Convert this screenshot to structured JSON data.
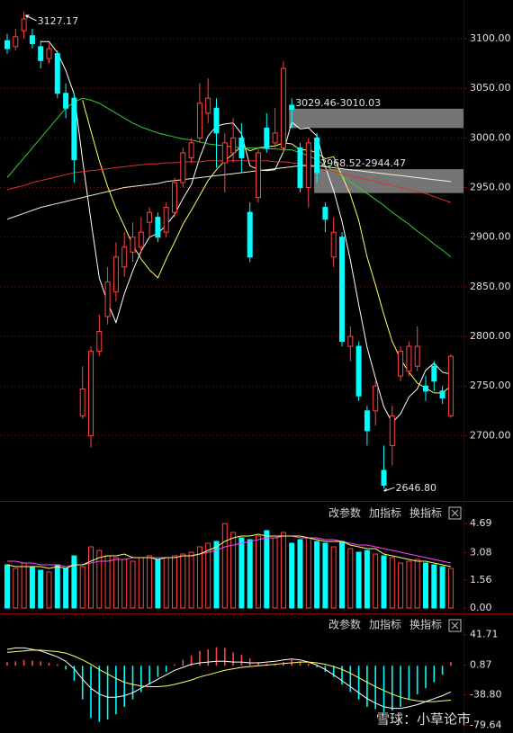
{
  "chart_data": [
    {
      "type": "candlestick",
      "up_color": "#ff4444",
      "down_color": "#00ffff",
      "grid": true,
      "open": [
        3098,
        3092,
        3108,
        3103,
        3092,
        3080,
        3085,
        3045,
        3040,
        2720,
        2700,
        2785,
        2820,
        2845,
        2870,
        2885,
        2890,
        2915,
        2920,
        2905,
        2925,
        2955,
        2980,
        3000,
        3025,
        3030,
        2975,
        2985,
        3000,
        2925,
        2940,
        3010,
        2995,
        2990,
        3033,
        2990,
        2950,
        3000,
        2930,
        2880,
        2900,
        2790,
        2790,
        2725,
        2725,
        2665,
        2690,
        2760,
        2765,
        2770,
        2750,
        2770,
        2745,
        2720
      ],
      "close": [
        3090,
        3102,
        3120,
        3095,
        3078,
        3090,
        3045,
        3030,
        2978,
        2747,
        2785,
        2805,
        2855,
        2880,
        2890,
        2900,
        2905,
        2925,
        2900,
        2930,
        2955,
        2985,
        2995,
        3035,
        3040,
        3005,
        2995,
        3000,
        2980,
        2880,
        2985,
        2990,
        3005,
        3070,
        3029,
        2950,
        2995,
        2965,
        2918,
        2905,
        2795,
        2800,
        2740,
        2705,
        2750,
        2650,
        2720,
        2785,
        2790,
        2790,
        2745,
        2755,
        2738,
        2780
      ],
      "high": [
        3105,
        3110,
        3127.17,
        3110,
        3098,
        3095,
        3088,
        3055,
        3045,
        2770,
        2790,
        2822,
        2870,
        2895,
        2905,
        2915,
        2920,
        2930,
        2925,
        2935,
        2960,
        2990,
        3000,
        3055,
        3060,
        3040,
        3005,
        3020,
        3015,
        2935,
        2990,
        3025,
        3030,
        3077,
        3040,
        2995,
        3000,
        3005,
        2935,
        2920,
        2905,
        2810,
        2795,
        2730,
        2755,
        2690,
        2730,
        2790,
        2795,
        2810,
        2760,
        2775,
        2750,
        2782
      ],
      "low": [
        3085,
        3088,
        3100,
        3090,
        3070,
        3075,
        3040,
        3020,
        2955,
        2717,
        2688,
        2780,
        2812,
        2835,
        2860,
        2875,
        2885,
        2900,
        2895,
        2900,
        2920,
        2950,
        2975,
        2995,
        3015,
        2970,
        2945,
        2975,
        2965,
        2875,
        2935,
        2985,
        2990,
        2985,
        3010,
        2945,
        2930,
        2955,
        2905,
        2870,
        2790,
        2775,
        2735,
        2690,
        2710,
        2646.8,
        2670,
        2755,
        2760,
        2765,
        2735,
        2745,
        2732,
        2718
      ],
      "lines": [
        {
          "color": "#ffffff",
          "values": [
            null,
            null,
            null,
            null,
            3097,
            3097,
            3086,
            3068,
            3044,
            2978,
            2917,
            2859,
            2834,
            2814,
            2843,
            2866,
            2886,
            2900,
            2904,
            2912,
            2923,
            2939,
            2953,
            2980,
            3002,
            3012,
            3014,
            3015,
            3004,
            2972,
            2968,
            2967,
            2968,
            2986,
            3016,
            3009,
            3010,
            3002,
            2971,
            2947,
            2916,
            2877,
            2832,
            2789,
            2758,
            2729,
            2713,
            2722,
            2739,
            2747,
            2766,
            2773,
            2764,
            2762
          ]
        },
        {
          "color": "#ffff66",
          "values": [
            null,
            null,
            null,
            null,
            null,
            null,
            null,
            null,
            null,
            3038,
            3007,
            2977,
            2951,
            2929,
            2911,
            2892,
            2878,
            2867,
            2859,
            2878,
            2895,
            2913,
            2927,
            2942,
            2957,
            2968,
            2977,
            2984,
            2992,
            2987,
            2990,
            2991,
            2992,
            2995,
            2994,
            2988,
            2988,
            2985,
            2979,
            2981,
            2962,
            2943,
            2917,
            2880,
            2852,
            2822,
            2795,
            2777,
            2764,
            2753,
            2748,
            2743,
            2743,
            2750
          ]
        },
        {
          "color": "#33cc33",
          "values": [
            2960,
            2970,
            2980,
            2990,
            3000,
            3010,
            3020,
            3030,
            3036,
            3040,
            3038,
            3035,
            3030,
            3025,
            3020,
            3015,
            3011,
            3008,
            3005,
            3003,
            3001,
            2999,
            2998,
            2996,
            2994,
            2993,
            2992,
            2991,
            2990,
            2990,
            2990,
            2989,
            2989,
            2988,
            2988,
            2985,
            2982,
            2978,
            2972,
            2967,
            2962,
            2956,
            2950,
            2944,
            2938,
            2932,
            2925,
            2919,
            2913,
            2906,
            2900,
            2893,
            2887,
            2880
          ]
        },
        {
          "color": "#e03030",
          "values": [
            2948,
            2950,
            2952,
            2955,
            2957,
            2959,
            2961,
            2963,
            2965,
            2966,
            2967,
            2968,
            2969,
            2970,
            2971,
            2972,
            2973,
            2974,
            2974,
            2975,
            2975,
            2976,
            2976,
            2976,
            2977,
            2977,
            2977,
            2977,
            2977,
            2977,
            2977,
            2977,
            2976,
            2976,
            2975,
            2974,
            2972,
            2970,
            2968,
            2966,
            2964,
            2962,
            2960,
            2958,
            2956,
            2954,
            2952,
            2950,
            2948,
            2946,
            2944,
            2941,
            2938,
            2935
          ]
        },
        {
          "color": "#f5f0d0",
          "values": [
            2918,
            2921,
            2924,
            2927,
            2930,
            2932,
            2934,
            2936,
            2938,
            2940,
            2942,
            2944,
            2946,
            2948,
            2950,
            2951,
            2952,
            2953,
            2954,
            2956,
            2957,
            2958,
            2959,
            2960,
            2961,
            2962,
            2963,
            2964,
            2965,
            2966,
            2967,
            2968,
            2969,
            2970,
            2971,
            2972,
            2972,
            2972,
            2971,
            2970,
            2969,
            2968,
            2967,
            2966,
            2965,
            2964,
            2963,
            2962,
            2961,
            2960,
            2959,
            2958,
            2957,
            2956
          ]
        }
      ],
      "max_label": "3127.17",
      "min_label": "2646.80",
      "gaps": [
        {
          "label": "3029.46-3010.03",
          "low": 3010.03,
          "high": 3029.46,
          "start": 34
        },
        {
          "label": "2968.52-2944.47",
          "low": 2944.47,
          "high": 2968.52,
          "start": 37
        }
      ],
      "ylim": [
        2636,
        3139
      ],
      "yticks": [
        {
          "value": 2700,
          "label": "2700.00"
        },
        {
          "value": 2750,
          "label": "2750.00"
        },
        {
          "value": 2800,
          "label": "2800.00"
        },
        {
          "value": 2850,
          "label": "2850.00"
        },
        {
          "value": 2900,
          "label": "2900.00"
        },
        {
          "value": 2950,
          "label": "2950.00"
        },
        {
          "value": 3000,
          "label": "3000.00"
        },
        {
          "value": 3050,
          "label": "3050.00"
        },
        {
          "value": 3100,
          "label": "3100.00"
        }
      ]
    },
    {
      "type": "volume",
      "toolbar": [
        "改参数",
        "加指标",
        "换指标"
      ],
      "values": [
        2.4,
        2.2,
        2.5,
        2.3,
        2.1,
        2.0,
        2.4,
        2.2,
        2.9,
        2.3,
        3.4,
        3.2,
        2.9,
        2.8,
        2.7,
        2.6,
        2.8,
        2.9,
        2.7,
        2.8,
        2.9,
        3.0,
        3.1,
        3.4,
        3.6,
        3.7,
        4.69,
        4.2,
        3.9,
        3.8,
        4.0,
        4.3,
        3.9,
        4.2,
        3.6,
        3.8,
        3.9,
        3.7,
        3.6,
        3.4,
        3.7,
        3.3,
        3.1,
        3.2,
        3.0,
        2.9,
        2.8,
        2.5,
        2.6,
        2.7,
        2.5,
        2.4,
        2.3,
        2.2
      ],
      "lines": [
        {
          "color": "#ff44ff",
          "values": [
            2.6,
            2.6,
            2.5,
            2.5,
            2.4,
            2.4,
            2.4,
            2.3,
            2.4,
            2.4,
            2.5,
            2.6,
            2.6,
            2.7,
            2.7,
            2.8,
            2.8,
            2.8,
            2.8,
            2.8,
            2.8,
            2.9,
            2.9,
            3.0,
            3.1,
            3.2,
            3.4,
            3.5,
            3.6,
            3.7,
            3.8,
            3.9,
            3.9,
            4.0,
            4.0,
            3.9,
            3.9,
            3.9,
            3.8,
            3.8,
            3.7,
            3.6,
            3.5,
            3.5,
            3.4,
            3.3,
            3.2,
            3.1,
            3.0,
            2.9,
            2.8,
            2.7,
            2.6,
            2.5
          ]
        },
        {
          "color": "#ffff66",
          "values": [
            2.4,
            2.3,
            2.3,
            2.3,
            2.3,
            2.2,
            2.3,
            2.2,
            2.4,
            2.4,
            2.6,
            2.8,
            2.9,
            2.9,
            3.0,
            2.8,
            2.8,
            2.8,
            2.7,
            2.8,
            2.8,
            2.9,
            2.9,
            3.0,
            3.2,
            3.4,
            3.7,
            3.9,
            4.0,
            4.0,
            4.1,
            4.0,
            4.0,
            4.0,
            4.0,
            4.0,
            3.9,
            3.8,
            3.7,
            3.7,
            3.7,
            3.5,
            3.4,
            3.3,
            3.3,
            3.0,
            2.9,
            2.8,
            2.7,
            2.6,
            2.6,
            2.5,
            2.4,
            2.3
          ]
        }
      ],
      "ylim": [
        0,
        5.6
      ],
      "yticks": [
        {
          "value": 0,
          "label": "0.00"
        },
        1.56,
        3.08,
        4.69
      ]
    },
    {
      "type": "macd",
      "toolbar": [
        "改参数",
        "加指标",
        "换指标"
      ],
      "pos_color": "#ff4444",
      "neg_color": "#00ffff",
      "values": [
        5,
        6,
        8,
        7,
        6,
        4,
        2,
        -5,
        -20,
        -45,
        -70,
        -75,
        -72,
        -65,
        -55,
        -45,
        -35,
        -25,
        -15,
        -8,
        2,
        8,
        14,
        20,
        22,
        25,
        24,
        18,
        15,
        10,
        5,
        3,
        2,
        5,
        8,
        6,
        3,
        -2,
        -8,
        -15,
        -25,
        -35,
        -45,
        -55,
        -58,
        -62,
        -60,
        -55,
        -45,
        -38,
        -30,
        -22,
        -12,
        5
      ],
      "lines": [
        {
          "color": "#ffffff",
          "values": [
            22,
            24,
            24,
            22,
            20,
            16,
            12,
            6,
            -4,
            -18,
            -30,
            -38,
            -42,
            -42,
            -40,
            -36,
            -30,
            -24,
            -18,
            -12,
            -6,
            -2,
            2,
            4,
            5,
            6,
            6,
            5,
            5,
            4,
            4,
            5,
            6,
            8,
            9,
            8,
            5,
            1,
            -5,
            -12,
            -20,
            -28,
            -36,
            -44,
            -50,
            -55,
            -57,
            -57,
            -55,
            -52,
            -48,
            -44,
            -40,
            -35
          ]
        },
        {
          "color": "#ffff66",
          "values": [
            18,
            19,
            20,
            21,
            21,
            20,
            19,
            17,
            13,
            8,
            2,
            -5,
            -11,
            -17,
            -22,
            -25,
            -27,
            -28,
            -28,
            -27,
            -25,
            -22,
            -19,
            -15,
            -12,
            -9,
            -6,
            -4,
            -2,
            -1,
            0,
            1,
            2,
            3,
            4,
            5,
            5,
            4,
            2,
            -1,
            -5,
            -10,
            -16,
            -22,
            -28,
            -33,
            -38,
            -42,
            -45,
            -47,
            -48,
            -48,
            -47,
            -46
          ]
        }
      ],
      "ylim": [
        -90,
        63
      ],
      "yticks": [
        41.71,
        0.87,
        {
          "value": -38.8,
          "label": "-38.80"
        },
        -79.64
      ]
    }
  ],
  "watermark": "雪球：小草论市"
}
